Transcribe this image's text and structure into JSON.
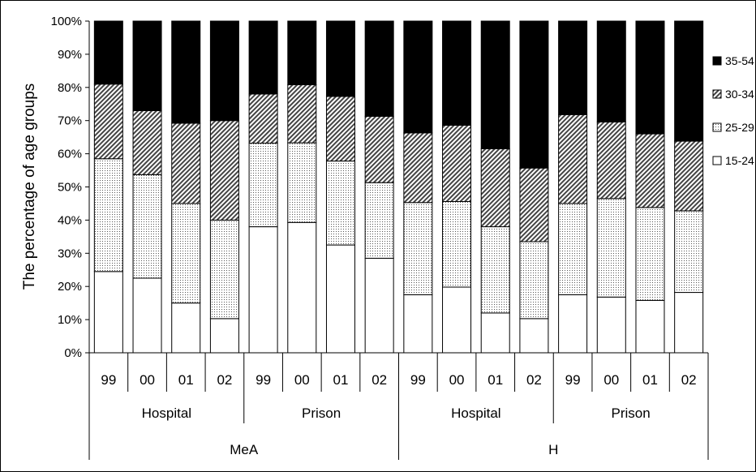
{
  "chart_data": {
    "type": "bar",
    "stacked": true,
    "percent": true,
    "ylabel": "The percentage of age groups",
    "ylim": [
      0,
      100
    ],
    "yticks": [
      "0%",
      "10%",
      "20%",
      "30%",
      "40%",
      "50%",
      "60%",
      "70%",
      "80%",
      "90%",
      "100%"
    ],
    "categories": [
      "99",
      "00",
      "01",
      "02",
      "99",
      "00",
      "01",
      "02",
      "99",
      "00",
      "01",
      "02",
      "99",
      "00",
      "01",
      "02"
    ],
    "group_level1": [
      "Hospital",
      "Prison",
      "Hospital",
      "Prison"
    ],
    "group_level2": [
      "MeA",
      "H"
    ],
    "legend": [
      "35-54",
      "30-34",
      "25-29",
      "15-24"
    ],
    "legend_position": "right",
    "series": [
      {
        "name": "15-24",
        "fill": "white",
        "values": [
          24.5,
          22.5,
          15,
          10.3,
          38,
          39.3,
          32.5,
          28.5,
          17.5,
          19.8,
          12,
          10.3,
          17.5,
          16.8,
          15.8,
          18.2
        ]
      },
      {
        "name": "25-29",
        "fill": "dotted",
        "values": [
          34,
          31.2,
          30,
          29.7,
          25.2,
          24,
          25.3,
          22.8,
          27.8,
          25.8,
          26,
          23.2,
          27.5,
          29.7,
          28,
          24.6
        ]
      },
      {
        "name": "30-34",
        "fill": "hatched",
        "values": [
          22.5,
          19.3,
          24.2,
          30,
          14.8,
          17.5,
          19.5,
          20,
          21,
          23,
          23.5,
          22.2,
          26.8,
          23.1,
          22.2,
          21
        ]
      },
      {
        "name": "35-54",
        "fill": "black",
        "values": [
          19,
          27,
          30.8,
          30,
          22,
          19.2,
          22.7,
          28.7,
          33.7,
          31.4,
          38.5,
          44.3,
          28.2,
          30.4,
          34,
          36.2
        ]
      }
    ],
    "colors": {
      "black": "#000000",
      "white": "#ffffff",
      "edge": "#000000"
    }
  }
}
